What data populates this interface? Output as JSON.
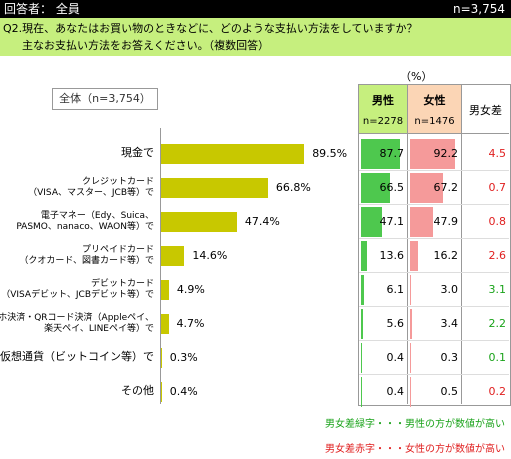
{
  "header": {
    "respondent": "回答者： 全員",
    "n_total": "n=3,754"
  },
  "question": {
    "line1": "Q2.現在、あなたはお買い物のときなどに、どのような支払い方法をしていますか？",
    "line2": "主なお支払い方法をお答えください。（複数回答）"
  },
  "total_label": "全体（n=3,754）",
  "unit_label": "（%）",
  "table_headers": {
    "male": "男性",
    "male_n": "n=2278",
    "female": "女性",
    "female_n": "n=1476",
    "diff": "男女差"
  },
  "colors": {
    "bar": "#c8c800",
    "male_fill": "#4ec84e",
    "female_fill": "#f59a9a",
    "male_header": "#c6ef7e",
    "female_header": "#fbd5b5",
    "green_text": "#1aa31a",
    "red_text": "#e02020"
  },
  "chart_data": {
    "type": "bar",
    "categories": [
      [
        "現金で"
      ],
      [
        "クレジットカード",
        "（VISA、マスター、JCB等）で"
      ],
      [
        "電子マネー（Edy、Suica、",
        "PASMO、nanaco、WAON等）で"
      ],
      [
        "プリペイドカード",
        "（クオカード、図書カード等）で"
      ],
      [
        "デビットカード",
        "（VISAデビット、JCBデビット等）で"
      ],
      [
        "スマホ決済・QRコード決済（Appleペイ、",
        "楽天ペイ、LINEペイ等）で"
      ],
      [
        "仮想通貨（ビットコイン等）で"
      ],
      [
        "その他"
      ]
    ],
    "total": [
      89.5,
      66.8,
      47.4,
      14.6,
      4.9,
      4.7,
      0.3,
      0.4
    ],
    "total_labels": [
      "89.5%",
      "66.8%",
      "47.4%",
      "14.6%",
      "4.9%",
      "4.7%",
      "0.3%",
      "0.4%"
    ],
    "male": [
      "87.7",
      "66.5",
      "47.1",
      "13.6",
      "6.1",
      "5.6",
      "0.4",
      "0.4"
    ],
    "female": [
      "92.2",
      "67.2",
      "47.9",
      "16.2",
      "3.0",
      "3.4",
      "0.3",
      "0.5"
    ],
    "diff": [
      "4.5",
      "0.7",
      "0.8",
      "2.6",
      "3.1",
      "2.2",
      "0.1",
      "0.2"
    ],
    "diff_color": [
      "red",
      "red",
      "red",
      "red",
      "green",
      "green",
      "green",
      "red"
    ],
    "xlim": [
      0,
      100
    ]
  },
  "notes": {
    "green": "男女差緑字・・・男性の方が数値が高い",
    "red": "男女差赤字・・・女性の方が数値が高い"
  }
}
